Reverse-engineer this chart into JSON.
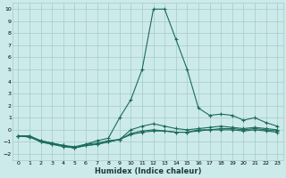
{
  "xlabel": "Humidex (Indice chaleur)",
  "bg_color": "#cdeaea",
  "grid_color": "#aacfcf",
  "line_color": "#1a6b5a",
  "xlim": [
    -0.5,
    23.5
  ],
  "ylim": [
    -2.5,
    10.5
  ],
  "xticks": [
    0,
    1,
    2,
    3,
    4,
    5,
    6,
    7,
    8,
    9,
    10,
    11,
    12,
    13,
    14,
    15,
    16,
    17,
    18,
    19,
    20,
    21,
    22,
    23
  ],
  "yticks": [
    -2,
    -1,
    0,
    1,
    2,
    3,
    4,
    5,
    6,
    7,
    8,
    9,
    10
  ],
  "line1_x": [
    0,
    1,
    2,
    3,
    4,
    5,
    6,
    7,
    8,
    9,
    10,
    11,
    12,
    13,
    14,
    15,
    16,
    17,
    18,
    19,
    20,
    21,
    22,
    23
  ],
  "line1_y": [
    -0.5,
    -0.5,
    -1.0,
    -1.2,
    -1.3,
    -1.5,
    -1.2,
    -0.9,
    -0.7,
    1.0,
    2.5,
    5.0,
    10.0,
    10.0,
    7.5,
    5.0,
    1.8,
    1.2,
    1.3,
    1.2,
    0.8,
    1.0,
    0.6,
    0.3
  ],
  "line2_x": [
    0,
    1,
    2,
    3,
    4,
    5,
    6,
    7,
    8,
    9,
    10,
    11,
    12,
    13,
    14,
    15,
    16,
    17,
    18,
    19,
    20,
    21,
    22,
    23
  ],
  "line2_y": [
    -0.5,
    -0.5,
    -0.9,
    -1.1,
    -1.3,
    -1.5,
    -1.3,
    -1.2,
    -1.0,
    -0.8,
    0.0,
    0.3,
    0.5,
    0.3,
    0.1,
    0.0,
    0.1,
    0.2,
    0.3,
    0.2,
    0.1,
    0.2,
    0.1,
    0.0
  ],
  "line3_x": [
    0,
    1,
    2,
    3,
    4,
    5,
    6,
    7,
    8,
    9,
    10,
    11,
    12,
    13,
    14,
    15,
    16,
    17,
    18,
    19,
    20,
    21,
    22,
    23
  ],
  "line3_y": [
    -0.5,
    -0.6,
    -1.0,
    -1.2,
    -1.4,
    -1.5,
    -1.3,
    -1.2,
    -1.0,
    -0.8,
    -0.3,
    -0.1,
    0.0,
    -0.1,
    -0.2,
    -0.2,
    -0.1,
    0.0,
    0.1,
    0.1,
    0.0,
    0.1,
    0.0,
    -0.1
  ],
  "line4_x": [
    0,
    1,
    2,
    3,
    4,
    5,
    6,
    7,
    8,
    9,
    10,
    11,
    12,
    13,
    14,
    15,
    16,
    17,
    18,
    19,
    20,
    21,
    22,
    23
  ],
  "line4_y": [
    -0.5,
    -0.6,
    -0.9,
    -1.1,
    -1.3,
    -1.4,
    -1.2,
    -1.1,
    -0.9,
    -0.8,
    -0.4,
    -0.2,
    -0.1,
    -0.1,
    -0.2,
    -0.2,
    0.0,
    0.0,
    0.0,
    0.0,
    -0.1,
    0.0,
    -0.1,
    -0.2
  ]
}
